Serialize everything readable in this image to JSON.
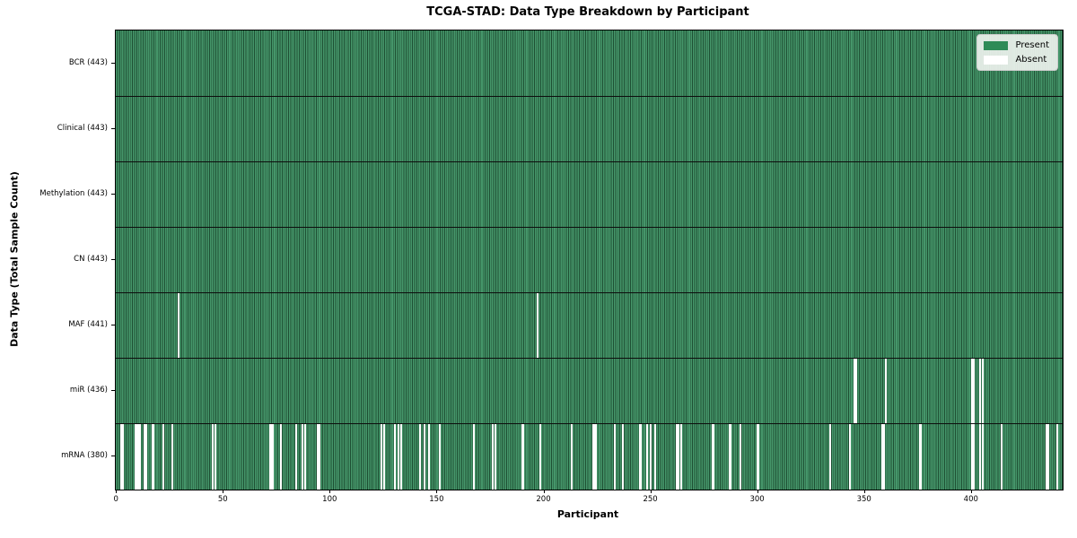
{
  "chart_data": {
    "type": "heatmap",
    "title": "TCGA-STAD: Data Type Breakdown by Participant",
    "xlabel": "Participant",
    "ylabel": "Data Type (Total Sample Count)",
    "n_participants": 443,
    "x_range": [
      0,
      443
    ],
    "x_ticks": [
      0,
      50,
      100,
      150,
      200,
      250,
      300,
      350,
      400
    ],
    "grid": false,
    "legend_position": "upper right",
    "legend_items": [
      {
        "label": "Present",
        "color": "#2e8b57"
      },
      {
        "label": "Absent",
        "color": "#ffffff"
      }
    ],
    "colors": {
      "present_fill": "#45966a",
      "bar_edge": "#1e4f33",
      "absent": "#ffffff",
      "row_divider": "#0d0d0d",
      "legend_bg": "#eef2ee",
      "legend_border": "#cccccc"
    },
    "rows": [
      {
        "label": "BCR (443)",
        "data_type": "BCR",
        "present_count": 443,
        "absent_participants": []
      },
      {
        "label": "Clinical (443)",
        "data_type": "Clinical",
        "present_count": 443,
        "absent_participants": []
      },
      {
        "label": "Methylation (443)",
        "data_type": "Methylation",
        "present_count": 443,
        "absent_participants": []
      },
      {
        "label": "CN (443)",
        "data_type": "CN",
        "present_count": 443,
        "absent_participants": []
      },
      {
        "label": "MAF (441)",
        "data_type": "MAF",
        "present_count": 441,
        "absent_participants": [
          29,
          197
        ]
      },
      {
        "label": "miR (436)",
        "data_type": "miR",
        "present_count": 436,
        "absent_participants": [
          345,
          346,
          360,
          400,
          401,
          404,
          405
        ]
      },
      {
        "label": "mRNA (380)",
        "data_type": "mRNA",
        "present_count": 380,
        "absent_participants": [
          2,
          3,
          9,
          10,
          11,
          13,
          14,
          17,
          22,
          26,
          45,
          46,
          72,
          73,
          77,
          84,
          87,
          88,
          94,
          95,
          124,
          125,
          130,
          132,
          133,
          142,
          144,
          146,
          151,
          167,
          176,
          177,
          190,
          198,
          213,
          223,
          224,
          233,
          237,
          245,
          248,
          250,
          252,
          262,
          263,
          264,
          279,
          287,
          292,
          300,
          334,
          343,
          358,
          359,
          376,
          400,
          401,
          404,
          405,
          414,
          435,
          436,
          440
        ]
      }
    ]
  }
}
